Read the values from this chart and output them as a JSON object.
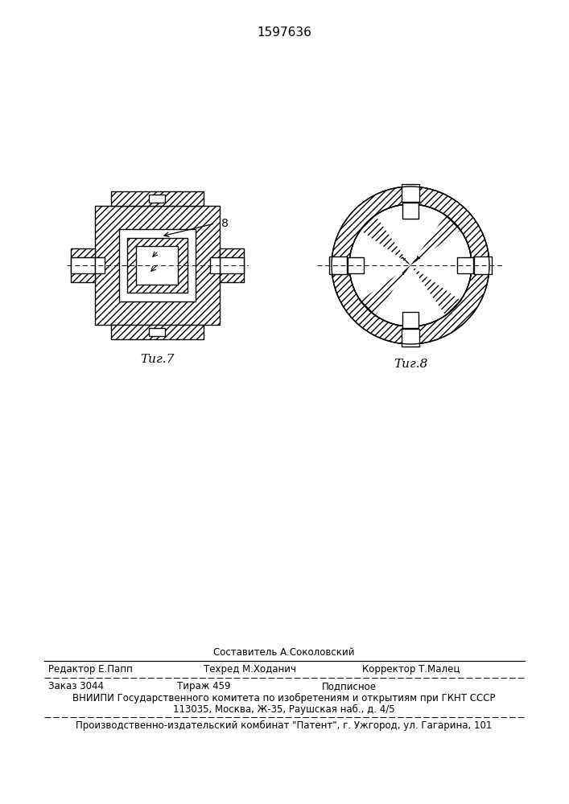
{
  "patent_number": "1597636",
  "fig7_label": "Τиг.7",
  "fig8_label": "Τиг.8",
  "label_8": "8",
  "footer_composer": "Составитель А.Соколовский",
  "footer_editor": "Редактор Е.Папп",
  "footer_techred": "Техред М.Ходанич",
  "footer_corrector": "Корректор Т.Малец",
  "footer_order": "Заказ 3044",
  "footer_tirazh": "Тираж 459",
  "footer_podpisnoe": "Подписное",
  "footer_vnipi": "ВНИИПИ Государственного комитета по изобретениям и открытиям при ГКНТ СССР",
  "footer_address": "113035, Москва, Ж-35, Раушская наб., д. 4/5",
  "footer_factory": "Производственно-издательский комбинат \"Патент\", г. Ужгород, ул. Гагарина, 101",
  "bg_color": "#ffffff",
  "line_color": "#000000"
}
